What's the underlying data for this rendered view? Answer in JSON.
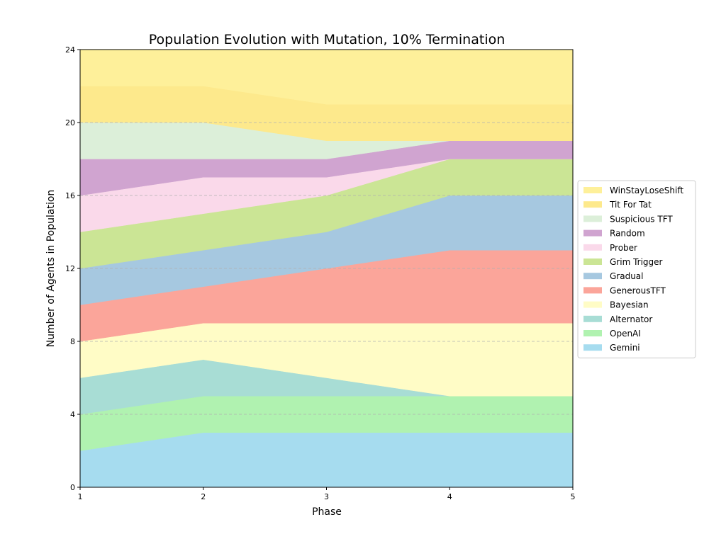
{
  "chart_data": {
    "type": "area",
    "stacked": true,
    "title": "Population Evolution with Mutation, 10% Termination",
    "xlabel": "Phase",
    "ylabel": "Number of Agents in Population",
    "x": [
      1,
      2,
      3,
      4,
      5
    ],
    "xlim": [
      1,
      5
    ],
    "ylim": [
      0,
      24
    ],
    "xticks": [
      "1",
      "2",
      "3",
      "4",
      "5"
    ],
    "yticks": [
      "0",
      "4",
      "8",
      "12",
      "16",
      "20",
      "24"
    ],
    "grid": "horizontal-dashed",
    "legend_position": "center-right-outside",
    "series": [
      {
        "name": "Gemini",
        "color": "#a6dcef",
        "values": [
          2,
          3,
          3,
          3,
          3
        ]
      },
      {
        "name": "OpenAI",
        "color": "#b0f2b0",
        "values": [
          2,
          2,
          2,
          2,
          2
        ]
      },
      {
        "name": "Alternator",
        "color": "#a8ddd5",
        "values": [
          2,
          2,
          1,
          0,
          0
        ]
      },
      {
        "name": "Bayesian",
        "color": "#fffcc6",
        "values": [
          2,
          2,
          3,
          4,
          4
        ]
      },
      {
        "name": "GenerousTFT",
        "color": "#fba59a",
        "values": [
          2,
          2,
          3,
          4,
          4
        ]
      },
      {
        "name": "Gradual",
        "color": "#a6c8e0",
        "values": [
          2,
          2,
          2,
          3,
          3
        ]
      },
      {
        "name": "Grim Trigger",
        "color": "#cbe595",
        "values": [
          2,
          2,
          2,
          2,
          2
        ]
      },
      {
        "name": "Prober",
        "color": "#fad9ea",
        "values": [
          2,
          2,
          1,
          0,
          0
        ]
      },
      {
        "name": "Random",
        "color": "#d0a4d0",
        "values": [
          2,
          1,
          1,
          1,
          1
        ]
      },
      {
        "name": "Suspicious TFT",
        "color": "#dcefd9",
        "values": [
          2,
          2,
          1,
          0,
          0
        ]
      },
      {
        "name": "Tit For Tat",
        "color": "#fde98c",
        "values": [
          2,
          2,
          2,
          2,
          2
        ]
      },
      {
        "name": "WinStayLoseShift",
        "color": "#fef09a",
        "values": [
          2,
          2,
          3,
          3,
          3
        ]
      }
    ]
  }
}
